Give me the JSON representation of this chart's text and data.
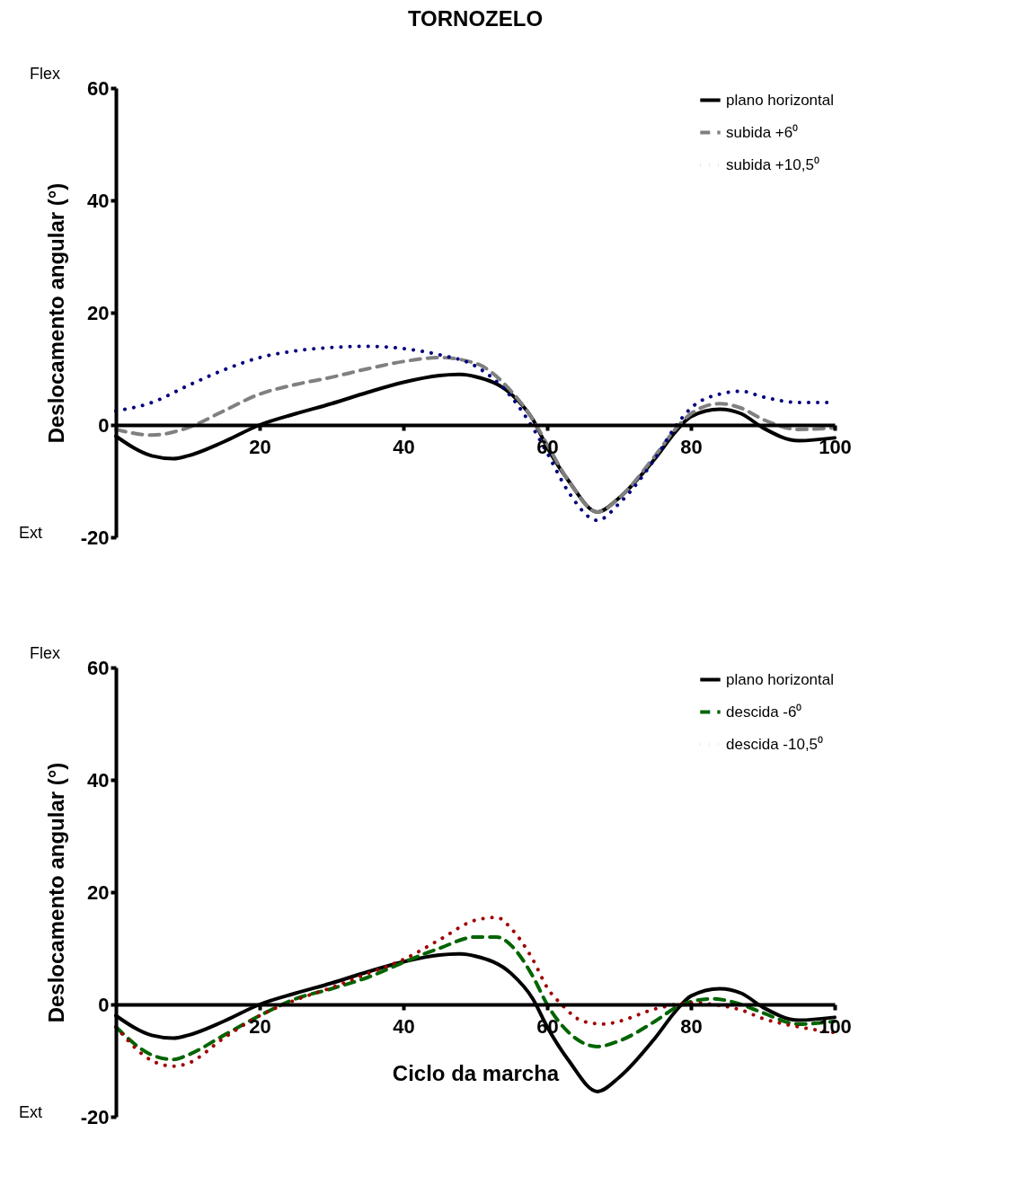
{
  "chart_data": [
    {
      "type": "line",
      "title": "TORNOZELO",
      "ylabel": "Deslocamento angular (°)",
      "xlim": [
        0,
        100
      ],
      "ylim": [
        -20,
        60
      ],
      "xticks": [
        20,
        40,
        60,
        80,
        100
      ],
      "yticks": [
        -20,
        0,
        20,
        40,
        60
      ],
      "grid": false,
      "legend": "top right",
      "marker": "none",
      "annotations": [
        "Flex",
        "Ext"
      ],
      "series": [
        {
          "name": "plano horizontal",
          "color": "#000000",
          "line_style": "solid",
          "x": [
            0,
            5,
            8,
            10,
            15,
            20,
            25,
            30,
            35,
            40,
            45,
            48,
            50,
            55,
            58,
            60,
            63,
            67,
            70,
            75,
            78,
            80,
            84,
            87,
            90,
            95,
            100
          ],
          "values": [
            -2,
            -5.5,
            -6,
            -5.5,
            -3,
            0,
            2,
            3.8,
            5.8,
            7.6,
            8.8,
            9,
            8.6,
            5.5,
            1,
            -4,
            -10,
            -15.5,
            -13,
            -6,
            -1,
            1.5,
            2.8,
            2,
            -0.5,
            -2.8,
            -2.3
          ]
        },
        {
          "name": "subida +6⁰",
          "color": "#808080",
          "line_style": "dashed",
          "x": [
            0,
            5,
            10,
            15,
            20,
            25,
            30,
            35,
            40,
            45,
            50,
            55,
            58,
            60,
            63,
            67,
            70,
            75,
            78,
            80,
            84,
            87,
            90,
            95,
            100
          ],
          "values": [
            -0.8,
            -1.8,
            -0.5,
            2.5,
            5.5,
            7.2,
            8.5,
            10,
            11.3,
            12,
            11,
            6,
            1,
            -3.5,
            -10,
            -15.5,
            -13,
            -5.5,
            -0.5,
            2,
            3.8,
            3,
            1,
            -0.8,
            -0.5
          ]
        },
        {
          "name": "subida +10,5⁰",
          "color": "#000080",
          "line_style": "dotted",
          "x": [
            0,
            5,
            10,
            15,
            20,
            25,
            30,
            35,
            40,
            45,
            50,
            55,
            58,
            60,
            63,
            67,
            70,
            75,
            78,
            80,
            84,
            87,
            90,
            95,
            100
          ],
          "values": [
            2.5,
            4,
            7,
            9.8,
            12,
            13.2,
            13.8,
            14,
            13.6,
            12.5,
            10.5,
            5,
            -0.5,
            -5,
            -12,
            -17,
            -14,
            -6,
            0,
            3,
            5.5,
            6,
            5,
            4,
            4
          ]
        }
      ]
    },
    {
      "type": "line",
      "xlabel": "Ciclo da marcha",
      "ylabel": "Deslocamento angular (°)",
      "xlim": [
        0,
        100
      ],
      "ylim": [
        -20,
        60
      ],
      "xticks": [
        20,
        40,
        60,
        80,
        100
      ],
      "yticks": [
        -20,
        0,
        20,
        40,
        60
      ],
      "grid": false,
      "legend": "top right",
      "marker": "none",
      "annotations": [
        "Flex",
        "Ext"
      ],
      "series": [
        {
          "name": "plano horizontal",
          "color": "#000000",
          "line_style": "solid",
          "x": [
            0,
            5,
            8,
            10,
            15,
            20,
            25,
            30,
            35,
            40,
            45,
            48,
            50,
            55,
            58,
            60,
            63,
            67,
            70,
            75,
            78,
            80,
            84,
            87,
            90,
            95,
            100
          ],
          "values": [
            -2,
            -5.5,
            -6,
            -5.5,
            -3,
            0,
            2,
            3.8,
            5.8,
            7.6,
            8.8,
            9,
            8.6,
            5.5,
            1,
            -4,
            -10,
            -15.5,
            -13,
            -6,
            -1,
            1.5,
            2.8,
            2,
            -0.5,
            -2.8,
            -2.3
          ]
        },
        {
          "name": "descida -6⁰",
          "color": "#006400",
          "line_style": "dashed",
          "x": [
            0,
            5,
            8,
            10,
            15,
            20,
            25,
            30,
            35,
            40,
            45,
            50,
            53,
            55,
            58,
            60,
            63,
            67,
            70,
            75,
            78,
            80,
            83,
            87,
            90,
            95,
            100
          ],
          "values": [
            -4,
            -9,
            -9.8,
            -9,
            -5.5,
            -2,
            1,
            2.8,
            4.8,
            7.5,
            10,
            12,
            12,
            10.5,
            5,
            0,
            -5,
            -7.5,
            -6.5,
            -3,
            -0.5,
            0.5,
            1,
            0,
            -1.5,
            -3.5,
            -3
          ]
        },
        {
          "name": "descida -10,5⁰",
          "color": "#a00000",
          "line_style": "dotted",
          "x": [
            0,
            5,
            8,
            10,
            15,
            20,
            25,
            30,
            35,
            40,
            45,
            50,
            53,
            55,
            58,
            60,
            62,
            65,
            68,
            70,
            75,
            78,
            80,
            83,
            87,
            90,
            95,
            100
          ],
          "values": [
            -4,
            -10,
            -11,
            -10.5,
            -6,
            -2,
            0.8,
            3,
            5.5,
            8,
            11.5,
            15,
            15.5,
            13.5,
            8,
            3,
            0,
            -3,
            -3.5,
            -3,
            -0.8,
            0,
            0.3,
            0,
            -1,
            -2.5,
            -4,
            -5
          ]
        }
      ]
    }
  ]
}
